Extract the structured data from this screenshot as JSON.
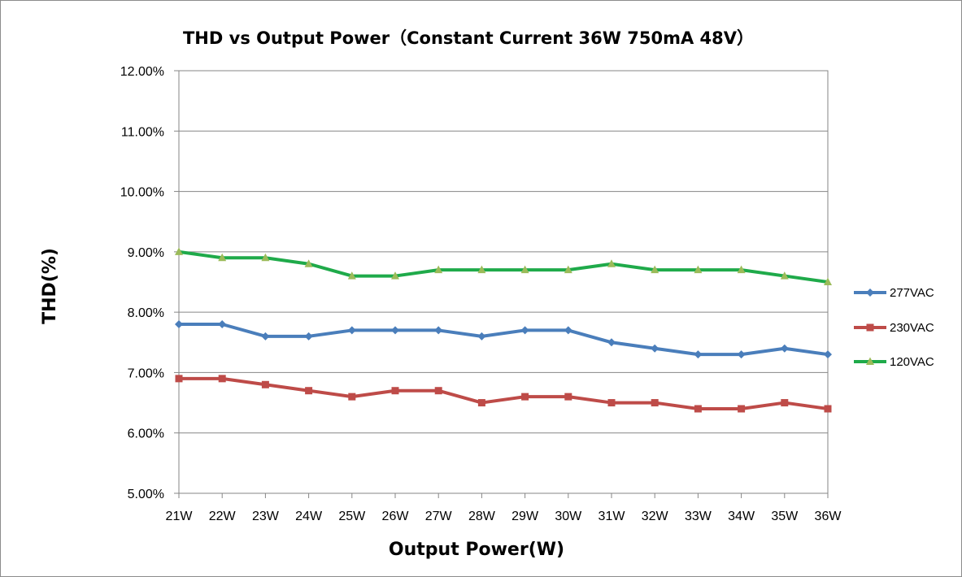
{
  "chart_data": {
    "type": "line",
    "title": "THD vs Output Power（Constant Current 36W  750mA 48V）",
    "xlabel": "Output Power(W)",
    "ylabel": "THD(%)",
    "ylim": [
      5.0,
      12.0
    ],
    "y_ticks": [
      "5.00%",
      "6.00%",
      "7.00%",
      "8.00%",
      "9.00%",
      "10.00%",
      "11.00%",
      "12.00%"
    ],
    "y_tick_values": [
      5,
      6,
      7,
      8,
      9,
      10,
      11,
      12
    ],
    "categories": [
      "21W",
      "22W",
      "23W",
      "24W",
      "25W",
      "26W",
      "27W",
      "28W",
      "29W",
      "30W",
      "31W",
      "32W",
      "33W",
      "34W",
      "35W",
      "36W"
    ],
    "grid": true,
    "legend_position": "right",
    "series": [
      {
        "name": "277VAC",
        "color": "#4a7ebb",
        "marker": "diamond",
        "values": [
          7.8,
          7.8,
          7.6,
          7.6,
          7.7,
          7.7,
          7.7,
          7.6,
          7.7,
          7.7,
          7.5,
          7.4,
          7.3,
          7.3,
          7.4,
          7.3
        ]
      },
      {
        "name": "230VAC",
        "color": "#be4b48",
        "marker": "square",
        "values": [
          6.9,
          6.9,
          6.8,
          6.7,
          6.6,
          6.7,
          6.7,
          6.5,
          6.6,
          6.6,
          6.5,
          6.5,
          6.4,
          6.4,
          6.5,
          6.4
        ]
      },
      {
        "name": "120VAC",
        "color": "#1faa4a",
        "marker": "triangle",
        "marker_color": "#9bbb59",
        "values": [
          9.0,
          8.9,
          8.9,
          8.8,
          8.6,
          8.6,
          8.7,
          8.7,
          8.7,
          8.7,
          8.8,
          8.7,
          8.7,
          8.7,
          8.6,
          8.5
        ]
      }
    ]
  }
}
